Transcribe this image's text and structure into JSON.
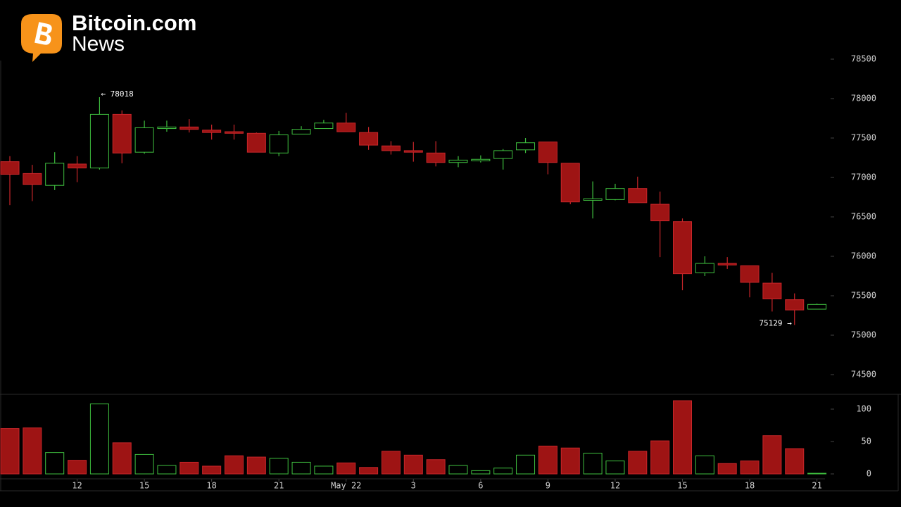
{
  "header": {
    "brand": "Bitcoin.com",
    "sub": "News"
  },
  "chart_data": [
    {
      "type": "candlestick",
      "categories": [
        null,
        null,
        null,
        "12",
        null,
        null,
        "15",
        null,
        null,
        "18",
        null,
        null,
        "21",
        null,
        null,
        "May 22",
        null,
        null,
        "3",
        null,
        null,
        "6",
        null,
        null,
        "9",
        null,
        null,
        "12",
        null,
        null,
        "15",
        null,
        null,
        "18",
        null,
        null,
        "21"
      ],
      "open": [
        77200,
        77050,
        76900,
        77170,
        77120,
        77800,
        77320,
        77620,
        77640,
        77600,
        77580,
        77560,
        77310,
        77550,
        77620,
        77690,
        77570,
        77400,
        77340,
        77310,
        77190,
        77210,
        77240,
        77350,
        77450,
        77180,
        76710,
        76720,
        76860,
        76660,
        76440,
        75790,
        75910,
        75880,
        75660,
        75450,
        75330
      ],
      "high": [
        77270,
        77160,
        77320,
        77270,
        78018,
        77850,
        77720,
        77720,
        77740,
        77670,
        77670,
        77570,
        77590,
        77650,
        77730,
        77820,
        77640,
        77460,
        77450,
        77460,
        77270,
        77280,
        77360,
        77500,
        77450,
        77180,
        76950,
        76920,
        77010,
        76820,
        76480,
        76000,
        75990,
        75880,
        75790,
        75530,
        75400
      ],
      "low": [
        76650,
        76700,
        76840,
        76940,
        77100,
        77180,
        77300,
        77580,
        77570,
        77480,
        77480,
        77320,
        77270,
        77550,
        77620,
        77580,
        77350,
        77290,
        77200,
        77140,
        77130,
        77190,
        77100,
        77310,
        77040,
        76660,
        76480,
        76710,
        76680,
        75990,
        75570,
        75750,
        75840,
        75480,
        75300,
        75129,
        75330
      ],
      "close": [
        77040,
        76910,
        77180,
        77120,
        77800,
        77310,
        77630,
        77640,
        77610,
        77570,
        77560,
        77320,
        77540,
        77610,
        77690,
        77580,
        77410,
        77340,
        77320,
        77190,
        77220,
        77230,
        77340,
        77440,
        77190,
        76690,
        76730,
        76860,
        76680,
        76450,
        75780,
        75910,
        75890,
        75670,
        75460,
        75320,
        75390
      ],
      "up_color": "#3fbf3f",
      "down_color": "#9e1414",
      "ylim": [
        74250,
        78500
      ],
      "yticks": [
        74500,
        75000,
        75500,
        76000,
        76500,
        77000,
        77500,
        78000,
        78500
      ],
      "annotations": [
        {
          "text": "← 78018"
        },
        {
          "text": "75129 →"
        }
      ]
    },
    {
      "type": "bar",
      "values": [
        70,
        71,
        33,
        21,
        108,
        48,
        30,
        13,
        18,
        12,
        28,
        26,
        24,
        18,
        12,
        17,
        10,
        35,
        29,
        22,
        13,
        5,
        9,
        29,
        43,
        40,
        32,
        20,
        35,
        51,
        113,
        28,
        16,
        20,
        59,
        39,
        1
      ],
      "ylim": [
        0,
        120
      ],
      "yticks": [
        0,
        50,
        100
      ]
    }
  ]
}
